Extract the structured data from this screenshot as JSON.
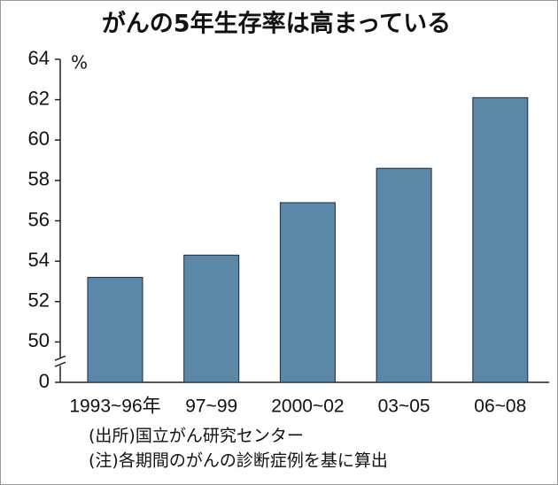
{
  "chart_data": {
    "type": "bar",
    "title": "がんの5年生存率は高まっている",
    "y_unit": "%",
    "categories": [
      "1993~96年",
      "97~99",
      "2000~02",
      "03~05",
      "06~08"
    ],
    "values": [
      53.2,
      54.3,
      56.9,
      58.6,
      62.1
    ],
    "color": "#5b87a9",
    "ylim": [
      0,
      64
    ],
    "yticks": [
      0,
      50,
      52,
      54,
      56,
      58,
      60,
      62,
      64
    ],
    "axis_break": true,
    "notes": [
      "(出所)国立がん研究センター",
      "(注)各期間のがんの診断症例を基に算出"
    ]
  }
}
